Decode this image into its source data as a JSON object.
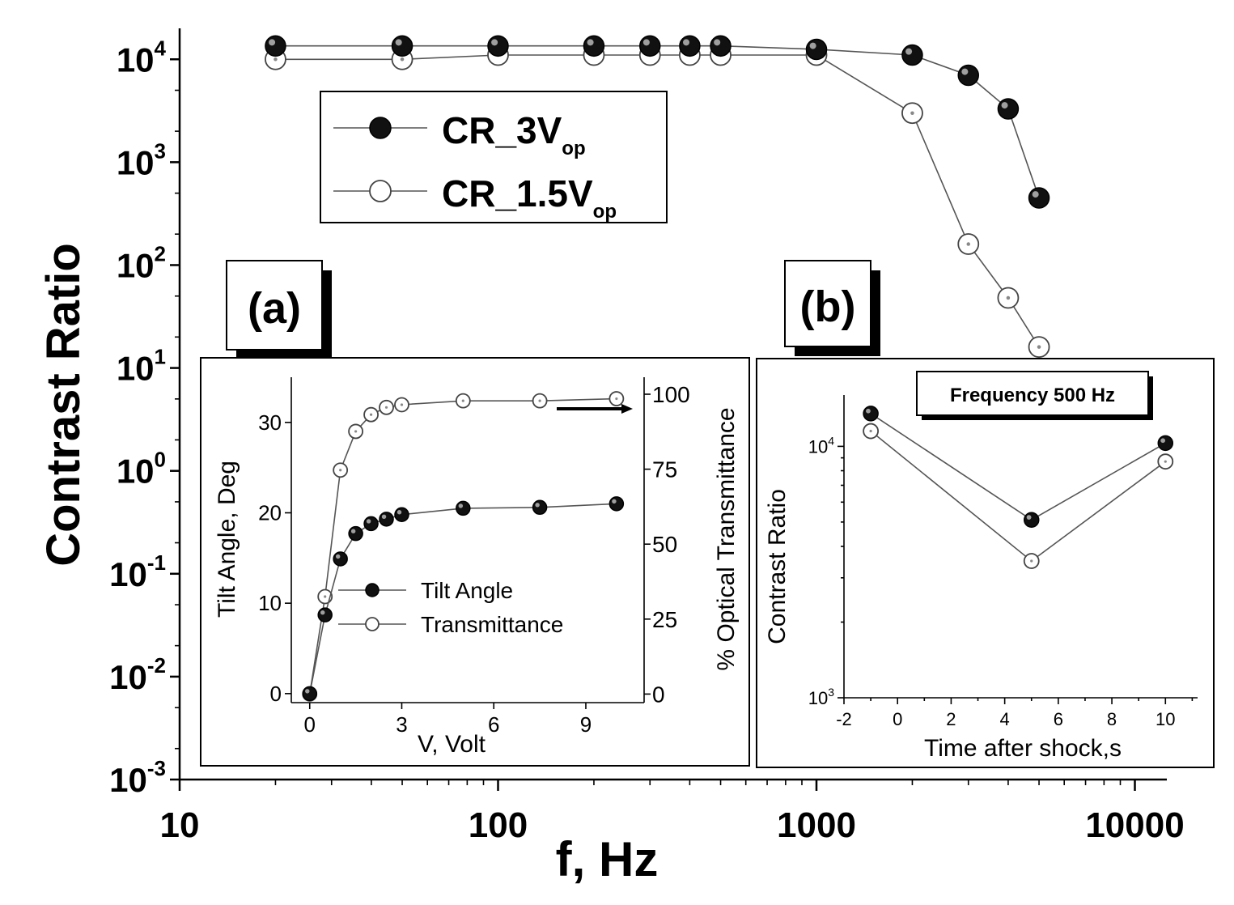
{
  "chart_data": [
    {
      "id": "main",
      "type": "scatter",
      "xscale": "log",
      "yscale": "log",
      "xlabel": "f, Hz",
      "ylabel": "Contrast Ratio",
      "xlim": [
        10,
        12600
      ],
      "ylim": [
        0.001,
        20000
      ],
      "xticks": [
        10,
        100,
        1000,
        10000
      ],
      "xtick_labels": [
        "10",
        "100",
        "1000",
        "10000"
      ],
      "ytick_exponents": [
        "4",
        "3",
        "2",
        "1",
        "0",
        "-1",
        "-2",
        "-3"
      ],
      "ytick_base": "10",
      "series": [
        {
          "name": "CR_3V",
          "name_sub": "op",
          "marker": "filled",
          "x": [
            20,
            50,
            100,
            200,
            300,
            400,
            500,
            1000,
            2000,
            3000,
            4000,
            5000
          ],
          "y": [
            13500,
            13500,
            13500,
            13500,
            13500,
            13500,
            13500,
            12500,
            11000,
            7000,
            3300,
            450
          ]
        },
        {
          "name": "CR_1.5V",
          "name_sub": "op",
          "marker": "open",
          "x": [
            20,
            50,
            100,
            200,
            300,
            400,
            500,
            1000,
            2000,
            3000,
            4000,
            5000
          ],
          "y": [
            10000,
            10000,
            11000,
            11000,
            11000,
            11000,
            11000,
            11000,
            3000,
            160,
            48,
            16
          ]
        }
      ]
    },
    {
      "id": "inset_a",
      "type": "line",
      "label": "(a)",
      "xlabel": "V, Volt",
      "ylabel": "Tilt Angle, Deg",
      "y2label": "% Optical Transmittance",
      "xlim": [
        -0.6,
        10.9
      ],
      "ylim": [
        -1,
        35
      ],
      "y2lim": [
        -2.86,
        100
      ],
      "xticks": [
        0,
        3,
        6,
        9
      ],
      "yticks": [
        0,
        10,
        20,
        30
      ],
      "y2ticks": [
        0,
        25,
        50,
        75,
        100
      ],
      "series": [
        {
          "name": "Tilt Angle",
          "marker": "filled",
          "axis": "left",
          "x": [
            0,
            0.5,
            1,
            1.5,
            2,
            2.5,
            3,
            5,
            7.5,
            10
          ],
          "y": [
            0,
            8.7,
            14.9,
            17.7,
            18.8,
            19.3,
            19.8,
            20.5,
            20.6,
            21.0
          ]
        },
        {
          "name": "Transmittance",
          "marker": "open",
          "axis": "right",
          "x": [
            0,
            0.5,
            1,
            1.5,
            2,
            2.5,
            3,
            5,
            7.5,
            10
          ],
          "y": [
            0,
            32.5,
            74.7,
            87.6,
            93.2,
            95.6,
            96.5,
            97.8,
            97.8,
            98.5
          ]
        }
      ]
    },
    {
      "id": "inset_b",
      "type": "line",
      "label": "(b)",
      "title": "Frequency 500 Hz",
      "xlabel": "Time after shock,s",
      "ylabel": "Contrast Ratio",
      "yscale": "log",
      "xlim": [
        -2,
        11.2
      ],
      "ylim": [
        1000,
        16000
      ],
      "xticks": [
        -2,
        0,
        2,
        4,
        6,
        8,
        10
      ],
      "ytick_base": "10",
      "ytick_exponents": [
        "4",
        "3"
      ],
      "series": [
        {
          "name": "CR_3V",
          "marker": "filled",
          "x": [
            -1,
            5,
            10
          ],
          "y": [
            13500,
            5100,
            10300
          ]
        },
        {
          "name": "CR_1.5V",
          "marker": "open",
          "x": [
            -1,
            5,
            10
          ],
          "y": [
            11500,
            3500,
            8700
          ]
        }
      ]
    }
  ]
}
